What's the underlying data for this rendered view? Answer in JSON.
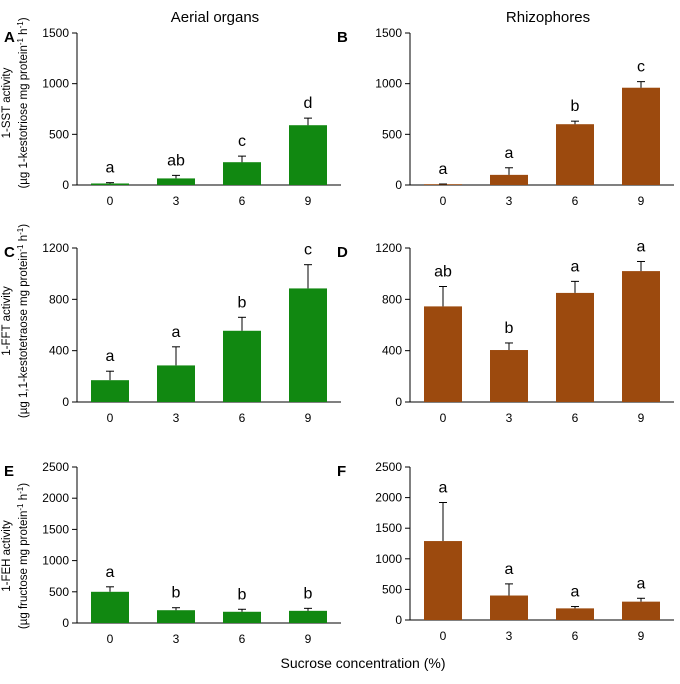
{
  "columns": [
    "Aerial organs",
    "Rhizophores"
  ],
  "xlabel": "Sucrose concentration (%)",
  "colors": {
    "aerial": "#118811",
    "rhizo": "#9C4A0E",
    "axis": "#000000"
  },
  "rows": [
    {
      "ylabel1": "1-SST activity",
      "ylabel2_a": "(µg 1-kestotriose mg protein",
      "ylabel2_sup1": "-1",
      "ylabel2_b": " h",
      "ylabel2_sup2": "-1",
      "ylabel2_c": ")"
    },
    {
      "ylabel1": "1-FFT activity",
      "ylabel2_a": "(µg 1,1-kestotetraose mg protein",
      "ylabel2_sup1": "-1",
      "ylabel2_b": " h",
      "ylabel2_sup2": "-1",
      "ylabel2_c": ")"
    },
    {
      "ylabel1": "1-FEH activity",
      "ylabel2_a": "(µg fructose mg protein",
      "ylabel2_sup1": "-1",
      "ylabel2_b": " h",
      "ylabel2_sup2": "-1",
      "ylabel2_c": ")"
    }
  ],
  "chart_data": [
    {
      "panel": "A",
      "type": "bar",
      "organ": "aerial",
      "categories": [
        "0",
        "3",
        "6",
        "9"
      ],
      "values": [
        15,
        65,
        225,
        590
      ],
      "errors": [
        8,
        30,
        60,
        70
      ],
      "letters": [
        "a",
        "ab",
        "c",
        "d"
      ],
      "ylim": [
        0,
        1500
      ],
      "yticks": [
        0,
        500,
        1000,
        1500
      ],
      "title": "1-SST activity, Aerial organs",
      "xlabel": "Sucrose concentration (%)",
      "ylabel": "1-SST activity"
    },
    {
      "panel": "B",
      "type": "bar",
      "organ": "rhizo",
      "categories": [
        "0",
        "3",
        "6",
        "9"
      ],
      "values": [
        5,
        100,
        600,
        960
      ],
      "errors": [
        5,
        70,
        30,
        60
      ],
      "letters": [
        "a",
        "a",
        "b",
        "c"
      ],
      "ylim": [
        0,
        1500
      ],
      "yticks": [
        0,
        500,
        1000,
        1500
      ],
      "title": "1-SST activity, Rhizophores",
      "xlabel": "Sucrose concentration (%)",
      "ylabel": "1-SST activity"
    },
    {
      "panel": "C",
      "type": "bar",
      "organ": "aerial",
      "categories": [
        "0",
        "3",
        "6",
        "9"
      ],
      "values": [
        170,
        285,
        555,
        885
      ],
      "errors": [
        70,
        145,
        105,
        185
      ],
      "letters": [
        "a",
        "a",
        "b",
        "c"
      ],
      "ylim": [
        0,
        1200
      ],
      "yticks": [
        0,
        400,
        800,
        1200
      ],
      "title": "1-FFT activity, Aerial organs",
      "xlabel": "Sucrose concentration (%)",
      "ylabel": "1-FFT activity"
    },
    {
      "panel": "D",
      "type": "bar",
      "organ": "rhizo",
      "categories": [
        "0",
        "3",
        "6",
        "9"
      ],
      "values": [
        745,
        405,
        850,
        1020
      ],
      "errors": [
        155,
        55,
        90,
        75
      ],
      "letters": [
        "ab",
        "b",
        "a",
        "a"
      ],
      "ylim": [
        0,
        1200
      ],
      "yticks": [
        0,
        400,
        800,
        1200
      ],
      "title": "1-FFT activity, Rhizophores",
      "xlabel": "Sucrose concentration (%)",
      "ylabel": "1-FFT activity"
    },
    {
      "panel": "E",
      "type": "bar",
      "organ": "aerial",
      "categories": [
        "0",
        "3",
        "6",
        "9"
      ],
      "values": [
        500,
        205,
        180,
        195
      ],
      "errors": [
        80,
        40,
        40,
        40
      ],
      "letters": [
        "a",
        "b",
        "b",
        "b"
      ],
      "ylim": [
        0,
        2500
      ],
      "yticks": [
        0,
        500,
        1000,
        1500,
        2000,
        2500
      ],
      "title": "1-FEH activity, Aerial organs",
      "xlabel": "Sucrose concentration (%)",
      "ylabel": "1-FEH activity"
    },
    {
      "panel": "F",
      "type": "bar",
      "organ": "rhizo",
      "categories": [
        "0",
        "3",
        "6",
        "9"
      ],
      "values": [
        1290,
        400,
        190,
        300
      ],
      "errors": [
        630,
        190,
        30,
        55
      ],
      "letters": [
        "a",
        "a",
        "a",
        "a"
      ],
      "ylim": [
        0,
        2500
      ],
      "yticks": [
        0,
        500,
        1000,
        1500,
        2000,
        2500
      ],
      "title": "1-FEH activity, Rhizophores",
      "xlabel": "Sucrose concentration (%)",
      "ylabel": "1-FEH activity"
    }
  ]
}
